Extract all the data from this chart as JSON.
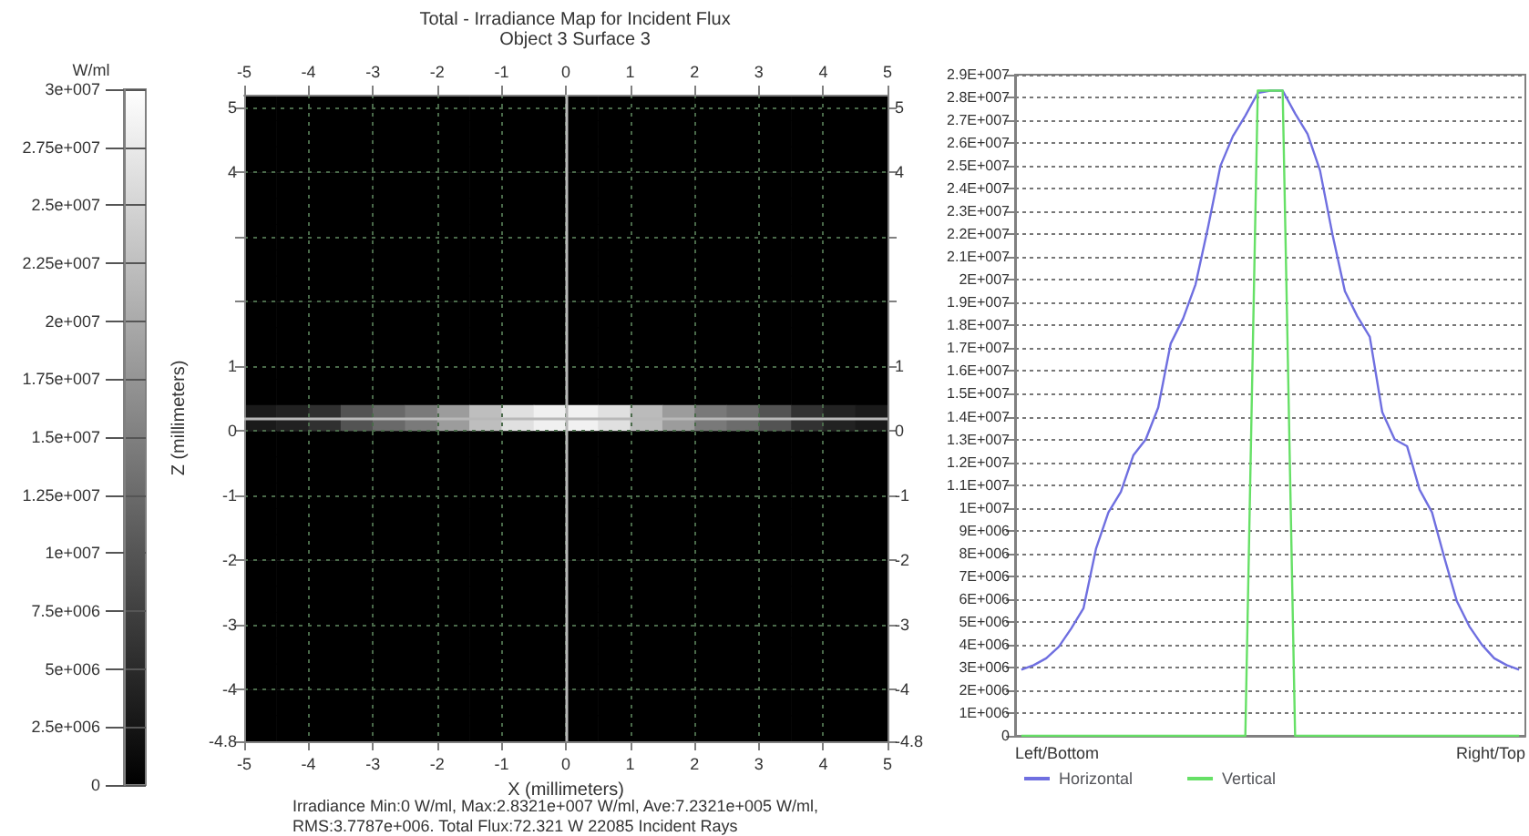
{
  "chart_data": [
    {
      "type": "heatmap",
      "title": "Total - Irradiance Map for Incident Flux",
      "subtitle": "Object 3 Surface 3",
      "xlabel": "X (millimeters)",
      "ylabel": "Z (millimeters)",
      "clabel": "W/ml",
      "annotations": [
        "Irradiance Min:0 W/ml, Max:2.8321e+007 W/ml, Ave:7.2321e+005 W/ml,",
        "RMS:3.7787e+006. Total Flux:72.321 W 22085 Incident Rays"
      ],
      "clim": [
        0,
        30000000
      ],
      "cticks": [
        0,
        {
          "value": 2500000,
          "label": "2.5e+006"
        },
        {
          "value": 5000000,
          "label": "5e+006"
        },
        {
          "value": 7500000,
          "label": "7.5e+006"
        },
        {
          "value": 10000000,
          "label": "1e+007"
        },
        {
          "value": 12500000,
          "label": "1.25e+007"
        },
        {
          "value": 15000000,
          "label": "1.5e+007"
        },
        {
          "value": 17500000,
          "label": "1.75e+007"
        },
        {
          "value": 20000000,
          "label": "2e+007"
        },
        {
          "value": 22500000,
          "label": "2.25e+007"
        },
        {
          "value": 25000000,
          "label": "2.5e+007"
        },
        {
          "value": 27500000,
          "label": "2.75e+007"
        },
        {
          "value": 30000000,
          "label": "3e+007"
        }
      ],
      "x": [
        -4.75,
        -4.25,
        -3.75,
        -3.25,
        -2.75,
        -2.25,
        -1.75,
        -1.25,
        -0.75,
        -0.25,
        0.25,
        0.75,
        1.25,
        1.75,
        2.25,
        2.75,
        3.25,
        3.75,
        4.25,
        4.75
      ],
      "y": [
        5.0,
        4.6,
        4.2,
        3.8,
        3.4,
        3.0,
        2.6,
        2.2,
        1.8,
        1.4,
        1.0,
        0.6,
        0.2,
        -0.2,
        -0.6,
        -1.0,
        -1.4,
        -1.8,
        -2.2,
        -2.6,
        -3.0,
        -3.4,
        -3.8,
        -4.2,
        -4.6
      ],
      "cells": [
        [
          0,
          0,
          0,
          0,
          0,
          0,
          0,
          0,
          0,
          0,
          0,
          0,
          0,
          0,
          0,
          0,
          0,
          0,
          0,
          0
        ],
        [
          0,
          0,
          0,
          0,
          0,
          0,
          0,
          0,
          0,
          0,
          0,
          0,
          0,
          0,
          0,
          0,
          0,
          0,
          0,
          0
        ],
        [
          0,
          0,
          0,
          0,
          0,
          0,
          0,
          0,
          0,
          0,
          0,
          0,
          0,
          0,
          0,
          0,
          0,
          0,
          0,
          0
        ],
        [
          0,
          0,
          0,
          0,
          0,
          0,
          0,
          0,
          0,
          0,
          0,
          0,
          0,
          0,
          0,
          0,
          0,
          0,
          0,
          0
        ],
        [
          0,
          0,
          0,
          0,
          0,
          0,
          0,
          0,
          0,
          0,
          0,
          0,
          0,
          0,
          0,
          0,
          0,
          0,
          0,
          0
        ],
        [
          0,
          0,
          0,
          0,
          0,
          0,
          0,
          0,
          0,
          0,
          0,
          0,
          0,
          0,
          0,
          0,
          0,
          0,
          0,
          0
        ],
        [
          0,
          0,
          0,
          0,
          0,
          0,
          0,
          0,
          0,
          0,
          0,
          0,
          0,
          0,
          0,
          0,
          0,
          0,
          0,
          0
        ],
        [
          0,
          0,
          0,
          0,
          0,
          0,
          0,
          0,
          0,
          0,
          0,
          0,
          0,
          0,
          0,
          0,
          0,
          0,
          0,
          0
        ],
        [
          0,
          0,
          0,
          0,
          0,
          0,
          0,
          0,
          0,
          0,
          0,
          0,
          0,
          0,
          0,
          0,
          0,
          0,
          0,
          0
        ],
        [
          0,
          0,
          0,
          0,
          0,
          0,
          0,
          0,
          0,
          0,
          0,
          0,
          0,
          0,
          0,
          0,
          0,
          0,
          0,
          0
        ],
        [
          0,
          0,
          0,
          0,
          0,
          0,
          0,
          0,
          0,
          0,
          0,
          0,
          0,
          0,
          0,
          0,
          0,
          0,
          0,
          0
        ],
        [
          0,
          0,
          0,
          0,
          0,
          0,
          0,
          0,
          0,
          0,
          0,
          0,
          0,
          0,
          0,
          0,
          0,
          0,
          0,
          0
        ],
        [
          3100000,
          3900000,
          5600000,
          9800000,
          12300000,
          14400000,
          18300000,
          22300000,
          26300000,
          28200000,
          28300000,
          26400000,
          22000000,
          18400000,
          14200000,
          12700000,
          9800000,
          5900000,
          4000000,
          3100000
        ],
        [
          0,
          0,
          0,
          0,
          0,
          0,
          0,
          0,
          0,
          0,
          0,
          0,
          0,
          0,
          0,
          0,
          0,
          0,
          0,
          0
        ],
        [
          0,
          0,
          0,
          0,
          0,
          0,
          0,
          0,
          0,
          0,
          0,
          0,
          0,
          0,
          0,
          0,
          0,
          0,
          0,
          0
        ],
        [
          0,
          0,
          0,
          0,
          0,
          0,
          0,
          0,
          0,
          0,
          0,
          0,
          0,
          0,
          0,
          0,
          0,
          0,
          0,
          0
        ],
        [
          0,
          0,
          0,
          0,
          0,
          0,
          0,
          0,
          0,
          0,
          0,
          0,
          0,
          0,
          0,
          0,
          0,
          0,
          0,
          0
        ],
        [
          0,
          0,
          0,
          0,
          0,
          0,
          0,
          0,
          0,
          0,
          0,
          0,
          0,
          0,
          0,
          0,
          0,
          0,
          0,
          0
        ],
        [
          0,
          0,
          0,
          0,
          0,
          0,
          0,
          0,
          0,
          0,
          0,
          0,
          0,
          0,
          0,
          0,
          0,
          0,
          0,
          0
        ],
        [
          0,
          0,
          0,
          0,
          0,
          0,
          0,
          0,
          0,
          0,
          0,
          0,
          0,
          0,
          0,
          0,
          0,
          0,
          0,
          0
        ],
        [
          0,
          0,
          0,
          0,
          0,
          0,
          0,
          0,
          0,
          0,
          0,
          0,
          0,
          0,
          0,
          0,
          0,
          0,
          0,
          0
        ],
        [
          0,
          0,
          0,
          0,
          0,
          0,
          0,
          0,
          0,
          0,
          0,
          0,
          0,
          0,
          0,
          0,
          0,
          0,
          0,
          0
        ],
        [
          0,
          0,
          0,
          0,
          0,
          0,
          0,
          0,
          0,
          0,
          0,
          0,
          0,
          0,
          0,
          0,
          0,
          0,
          0,
          0
        ],
        [
          0,
          0,
          0,
          0,
          0,
          0,
          0,
          0,
          0,
          0,
          0,
          0,
          0,
          0,
          0,
          0,
          0,
          0,
          0,
          0
        ],
        [
          0,
          0,
          0,
          0,
          0,
          0,
          0,
          0,
          0,
          0,
          0,
          0,
          0,
          0,
          0,
          0,
          0,
          0,
          0,
          0
        ]
      ],
      "xlim": [
        -5,
        5
      ],
      "xticks": [
        -5,
        -4,
        -3,
        -2,
        -1,
        0,
        1,
        2,
        3,
        4,
        5
      ],
      "x2lim": [
        -5,
        5
      ],
      "x2ticks": [
        -5,
        -4,
        -3,
        -2,
        -1,
        0,
        1,
        2,
        3,
        4,
        5
      ],
      "ylim": [
        -4.8,
        5.2
      ],
      "yticks": [
        -4.8,
        -4,
        -3,
        -2,
        -1,
        0,
        1,
        {
          "value": 2,
          "label": null
        },
        {
          "value": 3,
          "label": null
        },
        4,
        5
      ],
      "y2lim": [
        -4.8,
        5.2
      ],
      "y2ticks": [
        -4.8,
        -4,
        -3,
        -2,
        -1,
        0,
        1,
        {
          "value": 2,
          "label": null
        },
        {
          "value": 3,
          "label": null
        },
        4,
        5
      ],
      "ref_lines": [
        {
          "axis": "x",
          "value": 0,
          "color": "#b8b8b8"
        },
        {
          "axis": "y",
          "value": 0.2,
          "color": "#b8b8b8"
        }
      ],
      "grid": true
    },
    {
      "type": "line",
      "annotations": [
        "Left/Bottom",
        "Right/Top"
      ],
      "categories": [
        null,
        null,
        null,
        null,
        null,
        null,
        null,
        null,
        null,
        null,
        null,
        null,
        null,
        null,
        null,
        null,
        null,
        null,
        null,
        null,
        null,
        null,
        null,
        null,
        null,
        null,
        null,
        null,
        null,
        null,
        null,
        null,
        null,
        null,
        null,
        null,
        null,
        null,
        null,
        null,
        null
      ],
      "series": [
        {
          "name": "Horizontal",
          "color": "#6f6fe0",
          "values": [
            2900000,
            3100000,
            3400000,
            3900000,
            4700000,
            5600000,
            8200000,
            9800000,
            10700000,
            12300000,
            13000000,
            14400000,
            17200000,
            18300000,
            19800000,
            22300000,
            25000000,
            26300000,
            27200000,
            28200000,
            28300000,
            28300000,
            27300000,
            26400000,
            24800000,
            22000000,
            19500000,
            18400000,
            17500000,
            14200000,
            13000000,
            12700000,
            10800000,
            9800000,
            7800000,
            5900000,
            4800000,
            4000000,
            3400000,
            3100000,
            2900000
          ]
        },
        {
          "name": "Vertical",
          "color": "#66e066",
          "values": [
            0,
            0,
            0,
            0,
            0,
            0,
            0,
            0,
            0,
            0,
            0,
            0,
            0,
            0,
            0,
            0,
            0,
            0,
            0,
            28300000,
            28300000,
            28300000,
            0,
            0,
            0,
            0,
            0,
            0,
            0,
            0,
            0,
            0,
            0,
            0,
            0,
            0,
            0,
            0,
            0,
            0,
            0
          ]
        }
      ],
      "ylim": [
        0,
        29000000
      ],
      "yticks": [
        0,
        {
          "value": 1000000,
          "label": "1E+006"
        },
        {
          "value": 2000000,
          "label": "2E+006"
        },
        {
          "value": 3000000,
          "label": "3E+006"
        },
        {
          "value": 4000000,
          "label": "4E+006"
        },
        {
          "value": 5000000,
          "label": "5E+006"
        },
        {
          "value": 6000000,
          "label": "6E+006"
        },
        {
          "value": 7000000,
          "label": "7E+006"
        },
        {
          "value": 8000000,
          "label": "8E+006"
        },
        {
          "value": 9000000,
          "label": "9E+006"
        },
        {
          "value": 10000000,
          "label": "1E+007"
        },
        {
          "value": 11000000,
          "label": "1.1E+007"
        },
        {
          "value": 12000000,
          "label": "1.2E+007"
        },
        {
          "value": 13000000,
          "label": "1.3E+007"
        },
        {
          "value": 14000000,
          "label": "1.4E+007"
        },
        {
          "value": 15000000,
          "label": "1.5E+007"
        },
        {
          "value": 16000000,
          "label": "1.6E+007"
        },
        {
          "value": 17000000,
          "label": "1.7E+007"
        },
        {
          "value": 18000000,
          "label": "1.8E+007"
        },
        {
          "value": 19000000,
          "label": "1.9E+007"
        },
        {
          "value": 20000000,
          "label": "2E+007"
        },
        {
          "value": 21000000,
          "label": "2.1E+007"
        },
        {
          "value": 22000000,
          "label": "2.2E+007"
        },
        {
          "value": 23000000,
          "label": "2.3E+007"
        },
        {
          "value": 24000000,
          "label": "2.4E+007"
        },
        {
          "value": 25000000,
          "label": "2.5E+007"
        },
        {
          "value": 26000000,
          "label": "2.6E+007"
        },
        {
          "value": 27000000,
          "label": "2.7E+007"
        },
        {
          "value": 28000000,
          "label": "2.8E+007"
        },
        {
          "value": 29000000,
          "label": "2.9E+007"
        }
      ],
      "grid": "y",
      "legend": "bottom left",
      "marker": "none"
    }
  ]
}
